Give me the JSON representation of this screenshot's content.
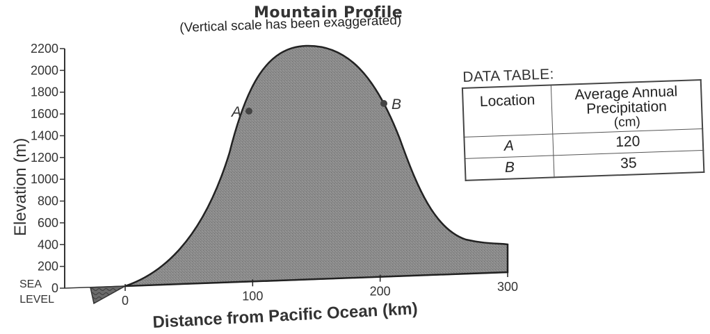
{
  "title": "Mountain Profile",
  "subtitle": "(Vertical scale has been exaggerated)",
  "y_axis": {
    "label": "Elevation (m)",
    "ticks": [
      "2200",
      "2000",
      "1800",
      "1600",
      "1400",
      "1200",
      "1000",
      "800",
      "600",
      "400",
      "200",
      "0"
    ],
    "sea_level_label": [
      "SEA",
      "LEVEL"
    ]
  },
  "x_axis": {
    "label": "Distance from Pacific Ocean (km)",
    "ticks": [
      "0",
      "100",
      "200",
      "300"
    ]
  },
  "points": [
    {
      "label": "A",
      "distance_km": 100,
      "elevation_m": 1600
    },
    {
      "label": "B",
      "distance_km": 200,
      "elevation_m": 1650
    }
  ],
  "data_table": {
    "caption": "DATA TABLE:",
    "headers": {
      "location": "Location",
      "precip_line1": "Average Annual",
      "precip_line2": "Precipitation",
      "precip_unit": "(cm)"
    },
    "rows": [
      {
        "location": "A",
        "precipitation": "120"
      },
      {
        "location": "B",
        "precipitation": "35"
      }
    ]
  },
  "colors": {
    "mountain_fill": "#8a8a8a",
    "ocean_fill": "#555555",
    "axis": "#333333"
  }
}
